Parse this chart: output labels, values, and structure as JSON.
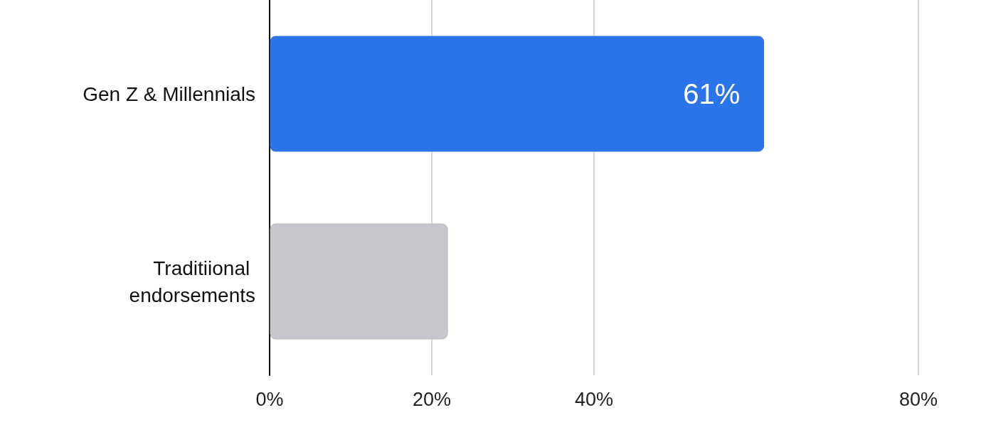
{
  "chart_data": {
    "type": "bar",
    "orientation": "horizontal",
    "categories": [
      "Gen Z & Millennials",
      "Traditiional endorsements"
    ],
    "values": [
      61,
      22
    ],
    "colors": [
      "#2a73e8",
      "#c6c7cc"
    ],
    "value_labels": [
      "61%",
      null
    ],
    "xlim": [
      0,
      80
    ],
    "xticks": [
      {
        "value": 0,
        "label": "0%"
      },
      {
        "value": 20,
        "label": "20%"
      },
      {
        "value": 40,
        "label": "40%"
      },
      {
        "value": 80,
        "label": "80%"
      }
    ],
    "grid": "x"
  }
}
